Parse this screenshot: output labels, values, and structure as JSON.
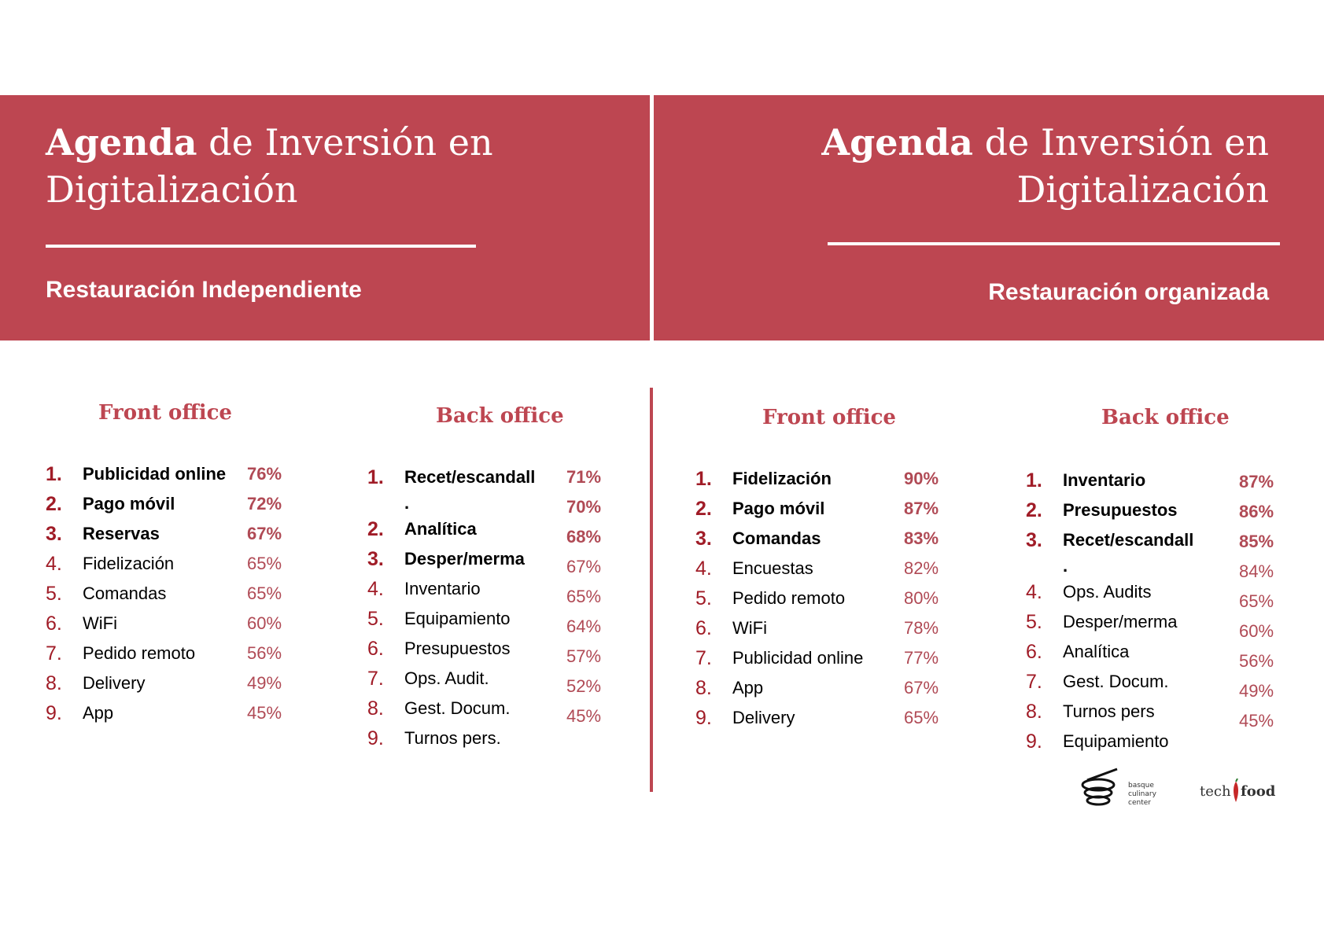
{
  "banners": {
    "left": {
      "title_bold": "Agenda",
      "title_rest": " de Inversión en",
      "title_line2": "Digitalización",
      "subtitle": "Restauración Independiente"
    },
    "right": {
      "title_bold": "Agenda",
      "title_rest": " de Inversión en",
      "title_line2": "Digitalización",
      "subtitle": "Restauración organizada"
    }
  },
  "independiente": {
    "front": {
      "heading": "Front office",
      "items": [
        {
          "n": "1.",
          "label": "Publicidad online",
          "pct": "76%"
        },
        {
          "n": "2.",
          "label": "Pago móvil",
          "pct": "72%"
        },
        {
          "n": "3.",
          "label": "Reservas",
          "pct": "67%"
        },
        {
          "n": "4.",
          "label": "Fidelización",
          "pct": "65%"
        },
        {
          "n": "5.",
          "label": "Comandas",
          "pct": "65%"
        },
        {
          "n": "6.",
          "label": "WiFi",
          "pct": "60%"
        },
        {
          "n": "7.",
          "label": "Pedido remoto",
          "pct": "56%"
        },
        {
          "n": "8.",
          "label": "Delivery",
          "pct": "49%"
        },
        {
          "n": "9.",
          "label": "App",
          "pct": "45%"
        }
      ]
    },
    "back": {
      "heading": "Back office",
      "items": [
        {
          "n": "1.",
          "label": "Recet/escandall"
        },
        {
          "n": "",
          "label": "."
        },
        {
          "n": "2.",
          "label": "Analítica"
        },
        {
          "n": "3.",
          "label": "Desper/merma"
        },
        {
          "n": "4.",
          "label": "Inventario"
        },
        {
          "n": "5.",
          "label": "Equipamiento"
        },
        {
          "n": "6.",
          "label": "Presupuestos"
        },
        {
          "n": "7.",
          "label": "Ops. Audit."
        },
        {
          "n": "8.",
          "label": "Gest. Docum."
        },
        {
          "n": "9.",
          "label": "Turnos pers."
        }
      ],
      "pcts": [
        "71%",
        "70%",
        "68%",
        "67%",
        "65%",
        "64%",
        "57%",
        "52%",
        "45%"
      ]
    }
  },
  "organizada": {
    "front": {
      "heading": "Front office",
      "items": [
        {
          "n": "1.",
          "label": "Fidelización",
          "pct": "90%"
        },
        {
          "n": "2.",
          "label": "Pago móvil",
          "pct": "87%"
        },
        {
          "n": "3.",
          "label": "Comandas",
          "pct": "83%"
        },
        {
          "n": "4.",
          "label": "Encuestas",
          "pct": "82%"
        },
        {
          "n": "5.",
          "label": "Pedido remoto",
          "pct": "80%"
        },
        {
          "n": "6.",
          "label": "WiFi",
          "pct": "78%"
        },
        {
          "n": "7.",
          "label": "Publicidad online",
          "pct": "77%"
        },
        {
          "n": "8.",
          "label": "App",
          "pct": "67%"
        },
        {
          "n": "9.",
          "label": "Delivery",
          "pct": "65%"
        }
      ]
    },
    "back": {
      "heading": "Back office",
      "items": [
        {
          "n": "1.",
          "label": "Inventario"
        },
        {
          "n": "2.",
          "label": "Presupuestos"
        },
        {
          "n": "3.",
          "label": "Recet/escandall"
        },
        {
          "n": "",
          "label": "."
        },
        {
          "n": "4.",
          "label": "Ops. Audits"
        },
        {
          "n": "5.",
          "label": "Desper/merma"
        },
        {
          "n": "6.",
          "label": "Analítica"
        },
        {
          "n": "7.",
          "label": "Gest. Docum."
        },
        {
          "n": "8.",
          "label": "Turnos pers"
        },
        {
          "n": "9.",
          "label": "Equipamiento"
        }
      ],
      "pcts": [
        "87%",
        "86%",
        "85%",
        "84%",
        "65%",
        "60%",
        "56%",
        "49%",
        "45%"
      ]
    }
  },
  "logos": {
    "bcc": {
      "text": [
        "basque",
        "culinary",
        "center"
      ]
    },
    "techfood": {
      "word1": "tech",
      "word2": "food"
    }
  }
}
